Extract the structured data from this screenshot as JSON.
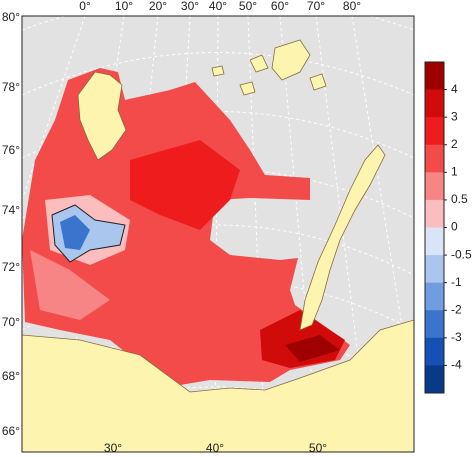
{
  "map": {
    "lat_labels": [
      "80°",
      "78°",
      "76°",
      "74°",
      "72°",
      "70°",
      "68°",
      "66°"
    ],
    "top_lon_labels": [
      "0°",
      "10°",
      "20°",
      "30°",
      "40°",
      "50°",
      "60°",
      "70°",
      "80°"
    ],
    "bottom_lon_labels": [
      "30°",
      "40°",
      "50°"
    ]
  },
  "colorbar": {
    "ticks": [
      4,
      3,
      2,
      1,
      0.5,
      0,
      -0.5,
      -1,
      -2,
      -3,
      -4
    ],
    "colors": [
      "#9e0000",
      "#d10a0a",
      "#ee1c1c",
      "#f34a4a",
      "#f78585",
      "#fbbdbd",
      "#d9e4f6",
      "#aac6ee",
      "#6f9de0",
      "#3a74cc",
      "#1551b5",
      "#083a8a"
    ]
  }
}
